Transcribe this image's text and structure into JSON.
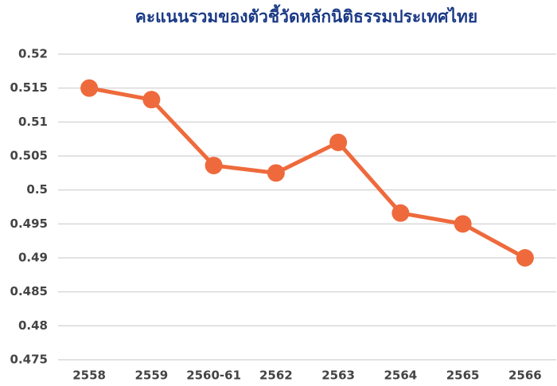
{
  "chart_data": {
    "type": "line",
    "title": "คะแนนรวมของตัวชี้วัดหลักนิติธรรมประเทศไทย",
    "categories": [
      "2558",
      "2559",
      "2560-61",
      "2562",
      "2563",
      "2564",
      "2565",
      "2566"
    ],
    "series": [
      {
        "name": "คะแนนรวม",
        "color": "#ee6a3c",
        "values": [
          0.515,
          0.5133,
          0.5036,
          0.5025,
          0.507,
          0.4966,
          0.495,
          0.49
        ]
      }
    ],
    "ylim": [
      0.475,
      0.52
    ],
    "yticks": [
      0.52,
      0.515,
      0.51,
      0.505,
      0.5,
      0.495,
      0.49,
      0.485,
      0.48,
      0.475
    ],
    "grid": true
  }
}
